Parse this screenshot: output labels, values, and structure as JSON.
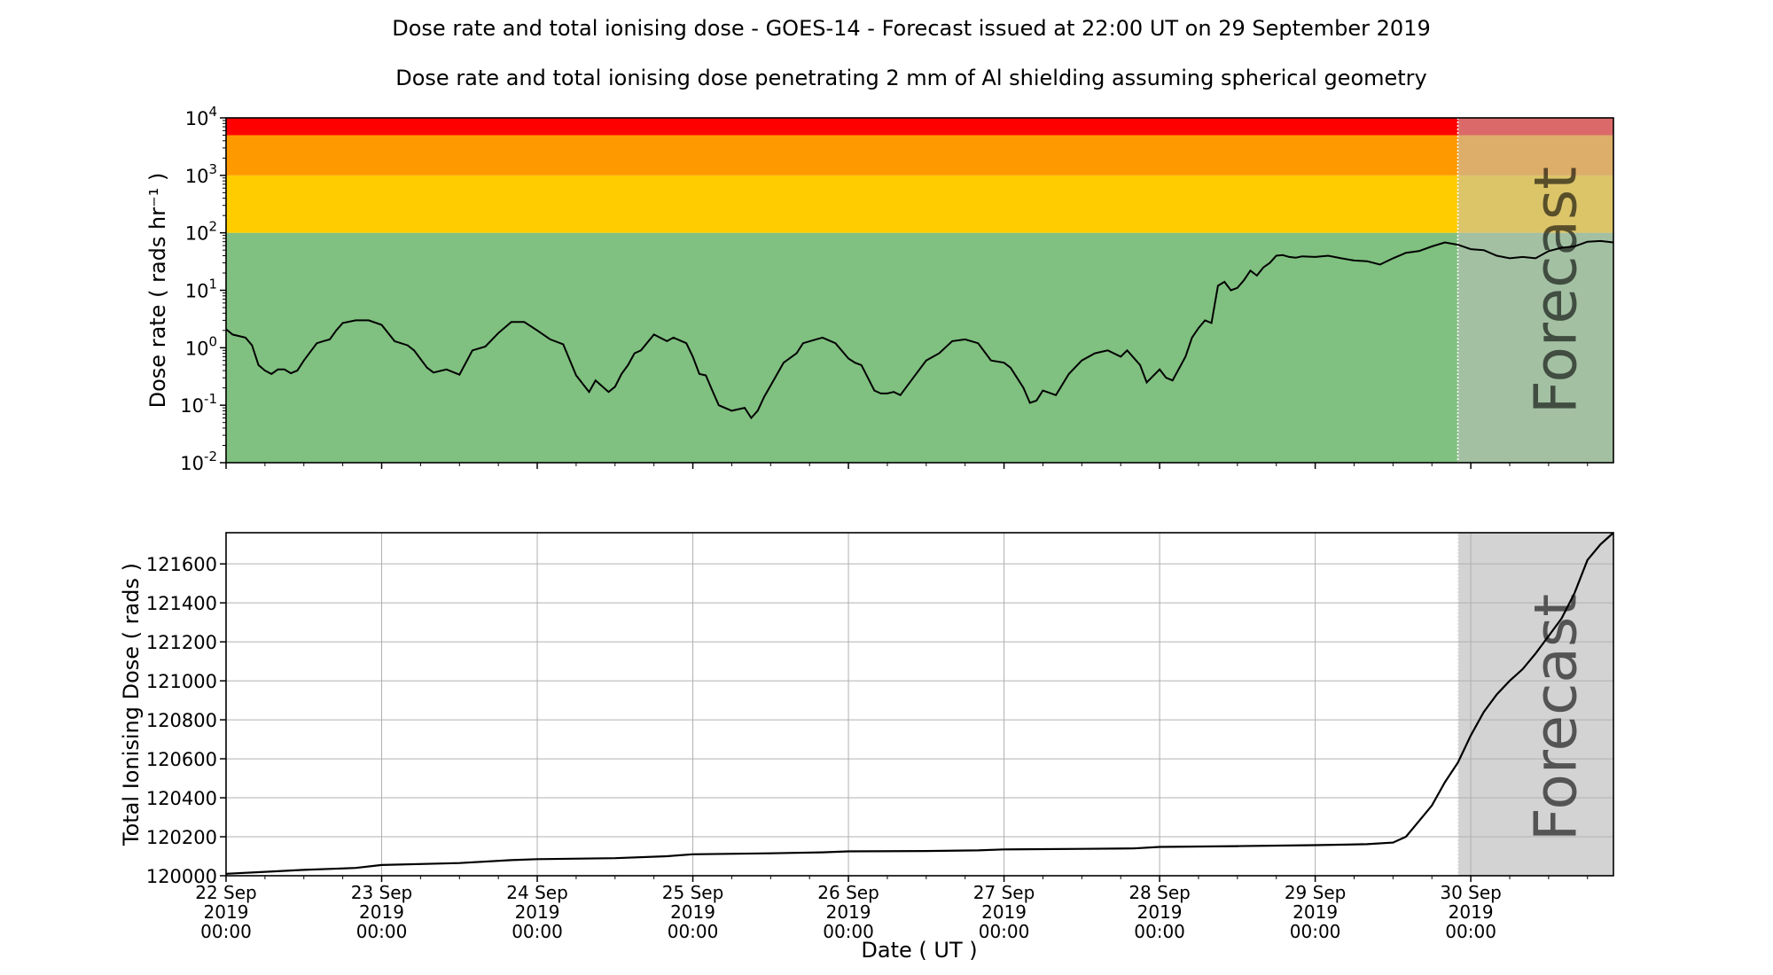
{
  "title": "Dose rate and total ionising dose - GOES-14 - Forecast issued at 22:00 UT on 29 September 2019",
  "subtitle": "Dose rate and total ionising dose penetrating 2 mm of Al shielding assuming spherical geometry",
  "forecast_label": "Forecast",
  "colors": {
    "red": "#ff0000",
    "orange": "#ff9900",
    "yellow": "#ffcc00",
    "green": "#80c080",
    "forecast_overlay": "#bfbfbf",
    "line": "#000000",
    "grid": "#b0b0b0"
  },
  "chart_data": [
    {
      "type": "line",
      "title": "",
      "ylabel": "Dose rate ( rads hr⁻¹ )",
      "xlabel": "",
      "scale": "log",
      "ylim": [
        0.01,
        10000
      ],
      "ytick_exponents": [
        -2,
        -1,
        0,
        1,
        2,
        3,
        4
      ],
      "xlim": [
        "2019-09-22T00:00",
        "2019-09-30T22:00"
      ],
      "forecast_start": "2019-09-29T22:00",
      "threshold_bands": [
        {
          "from": 0.01,
          "to": 100,
          "color": "#80c080"
        },
        {
          "from": 100,
          "to": 1000,
          "color": "#ffcc00"
        },
        {
          "from": 1000,
          "to": 5000,
          "color": "#ff9900"
        },
        {
          "from": 5000,
          "to": 10000,
          "color": "#ff0000"
        }
      ],
      "grid": false,
      "series": [
        {
          "x": [
            "2019-09-22T00:00",
            "2019-09-22T01:00",
            "2019-09-22T03:00",
            "2019-09-22T04:00",
            "2019-09-22T05:00",
            "2019-09-22T06:00",
            "2019-09-22T07:00",
            "2019-09-22T08:00",
            "2019-09-22T09:00",
            "2019-09-22T10:00",
            "2019-09-22T11:00",
            "2019-09-22T12:00",
            "2019-09-22T14:00",
            "2019-09-22T15:00",
            "2019-09-22T16:00",
            "2019-09-22T17:00",
            "2019-09-22T18:00",
            "2019-09-22T20:00",
            "2019-09-22T22:00",
            "2019-09-23T00:00",
            "2019-09-23T02:00",
            "2019-09-23T04:00",
            "2019-09-23T05:00",
            "2019-09-23T07:00",
            "2019-09-23T08:00",
            "2019-09-23T10:00",
            "2019-09-23T12:00",
            "2019-09-23T14:00",
            "2019-09-23T16:00",
            "2019-09-23T18:00",
            "2019-09-23T20:00",
            "2019-09-23T22:00",
            "2019-09-24T00:00",
            "2019-09-24T02:00",
            "2019-09-24T04:00",
            "2019-09-24T06:00",
            "2019-09-24T08:00",
            "2019-09-24T09:00",
            "2019-09-24T11:00",
            "2019-09-24T12:00",
            "2019-09-24T13:00",
            "2019-09-24T14:00",
            "2019-09-24T15:00",
            "2019-09-24T16:00",
            "2019-09-24T18:00",
            "2019-09-24T20:00",
            "2019-09-24T21:00",
            "2019-09-24T23:00",
            "2019-09-25T00:00",
            "2019-09-25T01:00",
            "2019-09-25T02:00",
            "2019-09-25T03:00",
            "2019-09-25T04:00",
            "2019-09-25T06:00",
            "2019-09-25T08:00",
            "2019-09-25T09:00",
            "2019-09-25T10:00",
            "2019-09-25T11:00",
            "2019-09-25T12:00",
            "2019-09-25T14:00",
            "2019-09-25T16:00",
            "2019-09-25T17:00",
            "2019-09-25T19:00",
            "2019-09-25T20:00",
            "2019-09-25T22:00",
            "2019-09-26T00:00",
            "2019-09-26T01:00",
            "2019-09-26T02:00",
            "2019-09-26T03:00",
            "2019-09-26T04:00",
            "2019-09-26T05:00",
            "2019-09-26T06:00",
            "2019-09-26T07:00",
            "2019-09-26T08:00",
            "2019-09-26T10:00",
            "2019-09-26T12:00",
            "2019-09-26T14:00",
            "2019-09-26T16:00",
            "2019-09-26T18:00",
            "2019-09-26T20:00",
            "2019-09-26T22:00",
            "2019-09-27T00:00",
            "2019-09-27T01:00",
            "2019-09-27T02:00",
            "2019-09-27T03:00",
            "2019-09-27T04:00",
            "2019-09-27T05:00",
            "2019-09-27T06:00",
            "2019-09-27T08:00",
            "2019-09-27T10:00",
            "2019-09-27T12:00",
            "2019-09-27T14:00",
            "2019-09-27T16:00",
            "2019-09-27T18:00",
            "2019-09-27T19:00",
            "2019-09-27T21:00",
            "2019-09-27T22:00",
            "2019-09-28T00:00",
            "2019-09-28T01:00",
            "2019-09-28T02:00",
            "2019-09-28T04:00",
            "2019-09-28T05:00",
            "2019-09-28T06:00",
            "2019-09-28T07:00",
            "2019-09-28T08:00",
            "2019-09-28T09:00",
            "2019-09-28T10:00",
            "2019-09-28T11:00",
            "2019-09-28T12:00",
            "2019-09-28T13:00",
            "2019-09-28T14:00",
            "2019-09-28T15:00",
            "2019-09-28T16:00",
            "2019-09-28T17:00",
            "2019-09-28T18:00",
            "2019-09-28T19:00",
            "2019-09-28T20:00",
            "2019-09-28T21:00",
            "2019-09-28T22:00",
            "2019-09-29T00:00",
            "2019-09-29T02:00",
            "2019-09-29T04:00",
            "2019-09-29T06:00",
            "2019-09-29T08:00",
            "2019-09-29T10:00",
            "2019-09-29T12:00",
            "2019-09-29T14:00",
            "2019-09-29T16:00",
            "2019-09-29T18:00",
            "2019-09-29T20:00",
            "2019-09-29T22:00",
            "2019-09-30T00:00",
            "2019-09-30T02:00",
            "2019-09-30T04:00",
            "2019-09-30T06:00",
            "2019-09-30T08:00",
            "2019-09-30T10:00",
            "2019-09-30T12:00",
            "2019-09-30T14:00",
            "2019-09-30T16:00",
            "2019-09-30T18:00",
            "2019-09-30T20:00",
            "2019-09-30T22:00"
          ],
          "y": [
            2.1,
            1.7,
            1.5,
            1.1,
            0.5,
            0.4,
            0.35,
            0.42,
            0.42,
            0.36,
            0.4,
            0.6,
            1.2,
            1.3,
            1.4,
            2.0,
            2.7,
            3.0,
            3.0,
            2.5,
            1.3,
            1.1,
            0.9,
            0.45,
            0.37,
            0.42,
            0.34,
            0.9,
            1.05,
            1.8,
            2.8,
            2.8,
            2.0,
            1.4,
            1.15,
            0.33,
            0.17,
            0.27,
            0.17,
            0.21,
            0.35,
            0.5,
            0.8,
            0.9,
            1.7,
            1.3,
            1.5,
            1.2,
            0.7,
            0.35,
            0.33,
            0.18,
            0.1,
            0.08,
            0.09,
            0.06,
            0.08,
            0.14,
            0.22,
            0.55,
            0.8,
            1.2,
            1.4,
            1.5,
            1.2,
            0.65,
            0.55,
            0.5,
            0.3,
            0.18,
            0.16,
            0.16,
            0.17,
            0.15,
            0.3,
            0.6,
            0.8,
            1.3,
            1.4,
            1.2,
            0.6,
            0.55,
            0.45,
            0.3,
            0.2,
            0.11,
            0.12,
            0.18,
            0.15,
            0.35,
            0.6,
            0.8,
            0.9,
            0.7,
            0.9,
            0.5,
            0.25,
            0.42,
            0.3,
            0.27,
            0.7,
            1.5,
            2.2,
            3.0,
            2.7,
            12.0,
            14.0,
            10.0,
            11.0,
            15.0,
            22.0,
            18.0,
            25.0,
            30.0,
            40.0,
            41.0,
            38.0,
            37.0,
            39.0,
            38.0,
            40.0,
            36.0,
            33.0,
            32.0,
            28.0,
            36.0,
            45.0,
            48.0,
            58.0,
            68.0,
            62.0,
            52.0,
            50.0,
            40.0,
            36.0,
            38.0,
            36.0,
            48.0,
            55.0,
            58.0,
            70.0,
            72.0,
            68.0
          ]
        }
      ]
    },
    {
      "type": "line",
      "title": "",
      "ylabel": "Total Ionising Dose ( rads )",
      "xlabel": "Date ( UT )",
      "ylim": [
        120000,
        121760
      ],
      "yticks": [
        120000,
        120200,
        120400,
        120600,
        120800,
        121000,
        121200,
        121400,
        121600
      ],
      "xlim": [
        "2019-09-22T00:00",
        "2019-09-30T22:00"
      ],
      "xtick_labels": [
        [
          "22 Sep",
          "2019",
          "00:00"
        ],
        [
          "23 Sep",
          "2019",
          "00:00"
        ],
        [
          "24 Sep",
          "2019",
          "00:00"
        ],
        [
          "25 Sep",
          "2019",
          "00:00"
        ],
        [
          "26 Sep",
          "2019",
          "00:00"
        ],
        [
          "27 Sep",
          "2019",
          "00:00"
        ],
        [
          "28 Sep",
          "2019",
          "00:00"
        ],
        [
          "29 Sep",
          "2019",
          "00:00"
        ],
        [
          "30 Sep",
          "2019",
          "00:00"
        ]
      ],
      "forecast_start": "2019-09-29T22:00",
      "grid": true,
      "series": [
        {
          "x": [
            "2019-09-22T00:00",
            "2019-09-22T06:00",
            "2019-09-22T12:00",
            "2019-09-22T20:00",
            "2019-09-23T00:00",
            "2019-09-23T12:00",
            "2019-09-23T20:00",
            "2019-09-24T00:00",
            "2019-09-24T12:00",
            "2019-09-24T20:00",
            "2019-09-25T00:00",
            "2019-09-25T12:00",
            "2019-09-25T20:00",
            "2019-09-26T00:00",
            "2019-09-26T12:00",
            "2019-09-26T20:00",
            "2019-09-27T00:00",
            "2019-09-27T12:00",
            "2019-09-27T20:00",
            "2019-09-28T00:00",
            "2019-09-28T12:00",
            "2019-09-28T20:00",
            "2019-09-29T00:00",
            "2019-09-29T08:00",
            "2019-09-29T12:00",
            "2019-09-29T14:00",
            "2019-09-29T16:00",
            "2019-09-29T18:00",
            "2019-09-29T20:00",
            "2019-09-29T22:00",
            "2019-09-30T00:00",
            "2019-09-30T02:00",
            "2019-09-30T04:00",
            "2019-09-30T06:00",
            "2019-09-30T08:00",
            "2019-09-30T10:00",
            "2019-09-30T12:00",
            "2019-09-30T14:00",
            "2019-09-30T16:00",
            "2019-09-30T18:00",
            "2019-09-30T20:00",
            "2019-09-30T22:00"
          ],
          "y": [
            120010,
            120020,
            120030,
            120040,
            120055,
            120065,
            120080,
            120085,
            120090,
            120100,
            120110,
            120115,
            120120,
            120125,
            120127,
            120130,
            120135,
            120138,
            120140,
            120148,
            120152,
            120155,
            120157,
            120162,
            120170,
            120200,
            120280,
            120360,
            120480,
            120580,
            120720,
            120840,
            120930,
            121000,
            121060,
            121140,
            121230,
            121320,
            121450,
            121620,
            121700,
            121760
          ]
        }
      ]
    }
  ]
}
